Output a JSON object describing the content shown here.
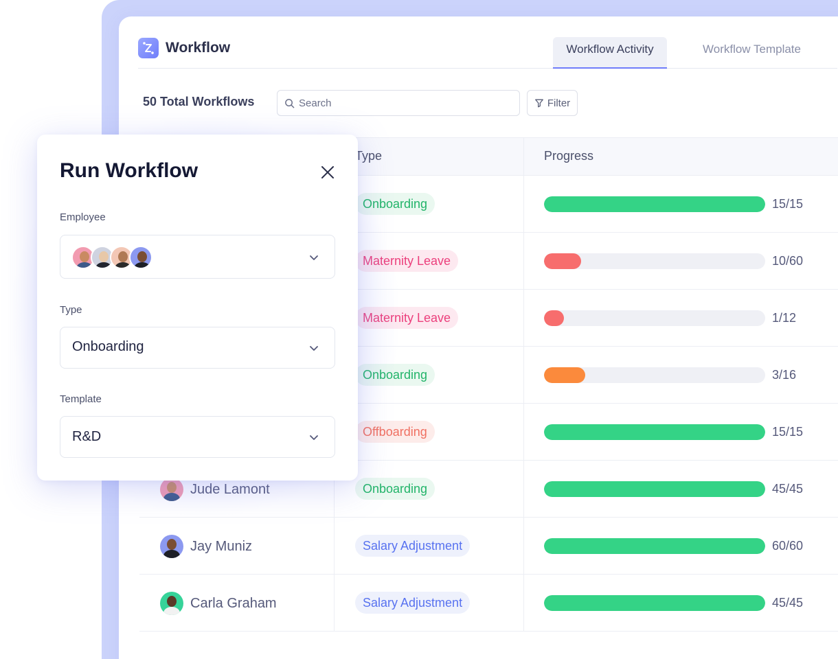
{
  "app": {
    "title": "Workflow",
    "tabs": [
      {
        "label": "Workflow Activity",
        "active": true
      },
      {
        "label": "Workflow Template",
        "active": false
      }
    ],
    "total_label": "50 Total Workflows",
    "search": {
      "placeholder": "Search",
      "value": ""
    },
    "filter_label": "Filter"
  },
  "table": {
    "columns": {
      "type": "Type",
      "progress": "Progress"
    },
    "rows": [
      {
        "name": "",
        "type": "Onboarding",
        "type_style": "onboarding",
        "progress_label": "15/15",
        "completed": 15,
        "total": 15,
        "bar_color": "#34d386"
      },
      {
        "name": "",
        "type": "Maternity Leave",
        "type_style": "maternity",
        "progress_label": "10/60",
        "completed": 10,
        "total": 60,
        "bar_color": "#f76d6d"
      },
      {
        "name": "",
        "type": "Maternity Leave",
        "type_style": "maternity",
        "progress_label": "1/12",
        "completed": 1,
        "total": 12,
        "bar_color": "#f76d6d"
      },
      {
        "name": "",
        "type": "Onboarding",
        "type_style": "onboarding",
        "progress_label": "3/16",
        "completed": 3,
        "total": 16,
        "bar_color": "#fb8a3c"
      },
      {
        "name": "",
        "type": "Offboarding",
        "type_style": "offboarding",
        "progress_label": "15/15",
        "completed": 15,
        "total": 15,
        "bar_color": "#34d386"
      },
      {
        "name": "Jude Lamont",
        "type": "Onboarding",
        "type_style": "onboarding",
        "progress_label": "45/45",
        "completed": 45,
        "total": 45,
        "bar_color": "#34d386"
      },
      {
        "name": "Jay Muniz",
        "type": "Salary Adjustment",
        "type_style": "salary",
        "progress_label": "60/60",
        "completed": 60,
        "total": 60,
        "bar_color": "#34d386"
      },
      {
        "name": "Carla Graham",
        "type": "Salary Adjustment",
        "type_style": "salary",
        "progress_label": "45/45",
        "completed": 45,
        "total": 45,
        "bar_color": "#34d386"
      }
    ]
  },
  "modal": {
    "title": "Run Workflow",
    "employee": {
      "label": "Employee"
    },
    "type": {
      "label": "Type",
      "value": "Onboarding"
    },
    "template": {
      "label": "Template",
      "value": "R&D"
    }
  },
  "colors": {
    "accent": "#6f7dfa",
    "backdrop": "#cbd3fb",
    "progress_complete": "#34d386",
    "progress_low": "#f76d6d",
    "progress_mid": "#fb8a3c"
  },
  "icons": [
    "workflow-logo-icon",
    "search-icon",
    "filter-icon",
    "close-icon",
    "chevron-down-icon"
  ]
}
